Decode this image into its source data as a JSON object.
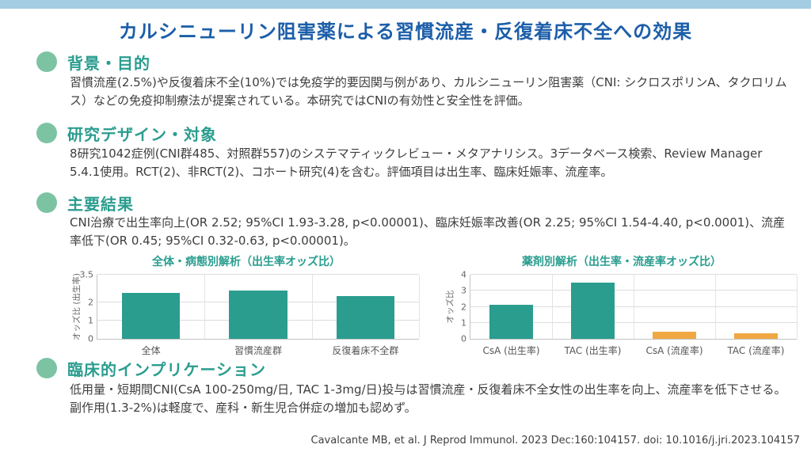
{
  "slide": {
    "title": "カルシニューリン阻害薬による習慣流産・反復着床不全への効果",
    "citation": "Cavalcante MB, et al. J Reprod Immunol. 2023 Dec:160:104157. doi: 10.1016/j.jri.2023.104157"
  },
  "sections": [
    {
      "heading": "背景・目的",
      "body": "習慣流産(2.5%)や反復着床不全(10%)では免疫学的要因関与例があり、カルシニューリン阻害薬（CNI: シクロスポリンA、タクロリムス）などの免疫抑制療法が提案されている。本研究ではCNIの有効性と安全性を評価。"
    },
    {
      "heading": "研究デザイン・対象",
      "body": "8研究1042症例(CNI群485、対照群557)のシステマティックレビュー・メタアナリシス。3データベース検索、Review Manager 5.4.1使用。RCT(2)、非RCT(2)、コホート研究(4)を含む。評価項目は出生率、臨床妊娠率、流産率。"
    },
    {
      "heading": "主要結果",
      "body": "CNI治療で出生率向上(OR 2.52; 95%CI 1.93-3.28, p<0.00001)、臨床妊娠率改善(OR 2.25; 95%CI 1.54-4.40, p<0.0001)、流産率低下(OR 0.45; 95%CI 0.32-0.63, p<0.00001)。"
    },
    {
      "heading": "臨床的インプリケーション",
      "body": "低用量・短期間CNI(CsA 100-250mg/日, TAC 1-3mg/日)投与は習慣流産・反復着床不全女性の出生率を向上、流産率を低下させる。副作用(1.3-2%)は軽度で、産科・新生児合併症の増加も認めず。"
    }
  ],
  "chart_data": [
    {
      "type": "bar",
      "title": "全体・病態別解析（出生率オッズ比）",
      "ylabel": "オッズ比 (出生率)",
      "xlabel": "",
      "categories": [
        "全体",
        "習慣流産群",
        "反復着床不全群"
      ],
      "values": [
        2.52,
        2.65,
        2.35
      ],
      "yticks": [
        0,
        1,
        2,
        3.5
      ],
      "ylim": [
        0,
        3.5
      ],
      "bar_colors": [
        "#2a9d8f",
        "#2a9d8f",
        "#2a9d8f"
      ],
      "grid": true,
      "legend": false
    },
    {
      "type": "bar",
      "title": "薬剤別解析（出生率・流産率オッズ比）",
      "ylabel": "オッズ比",
      "xlabel": "",
      "categories": [
        "CsA (出生率)",
        "TAC (出生率)",
        "CsA (流産率)",
        "TAC (流産率)"
      ],
      "values": [
        2.1,
        3.5,
        0.45,
        0.35
      ],
      "yticks": [
        0,
        1,
        2,
        3,
        4
      ],
      "ylim": [
        0,
        4
      ],
      "bar_colors": [
        "#2a9d8f",
        "#2a9d8f",
        "#f0a843",
        "#f0a843"
      ],
      "grid": true,
      "legend": false
    }
  ],
  "colors": {
    "top_bar": "#a4cce2",
    "title_blue": "#1c5ea9",
    "heading_teal": "#2a9d8f",
    "bullet_green": "#7cc3a3",
    "bar_teal": "#2a9d8f",
    "bar_orange": "#f0a843",
    "body_text": "#3d3d3d"
  }
}
